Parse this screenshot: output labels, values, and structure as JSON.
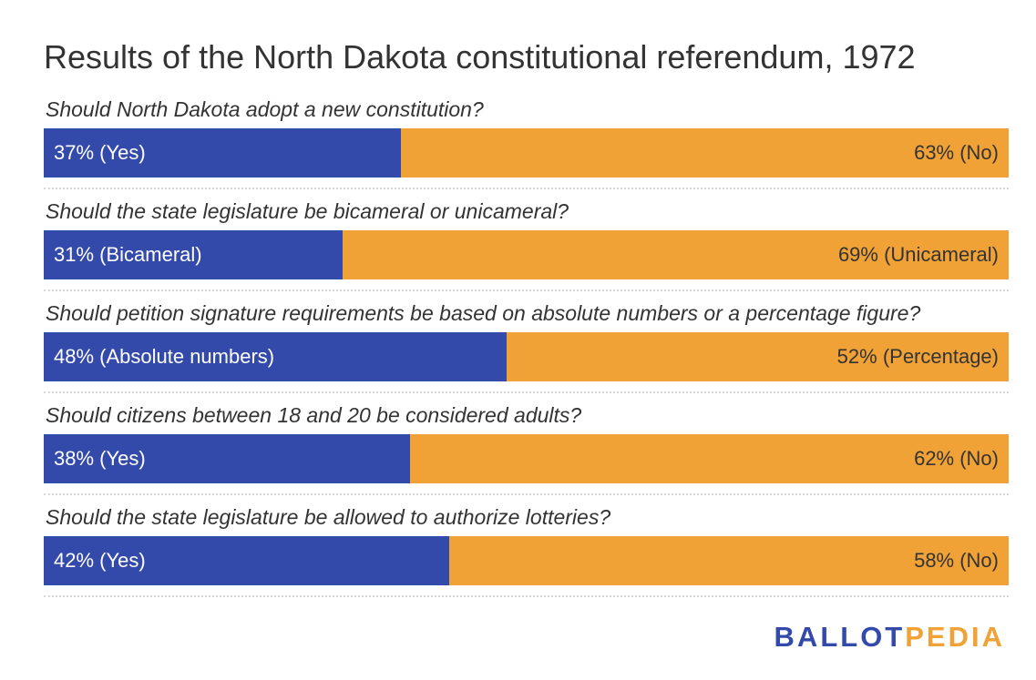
{
  "colors": {
    "option_a": "#334aab",
    "option_b": "#f0a236"
  },
  "brand": {
    "part1": "BALLOT",
    "part2": "PEDIA"
  },
  "chart_data": {
    "type": "bar",
    "orientation": "horizontal-stacked-100",
    "title": "Results of the North Dakota constitutional referendum, 1972",
    "rows": [
      {
        "question": "Should North Dakota adopt a new constitution?",
        "a": {
          "value": 37,
          "text": "37% (Yes)"
        },
        "b": {
          "value": 63,
          "text": "63% (No)"
        }
      },
      {
        "question": "Should the state legislature be bicameral or unicameral?",
        "a": {
          "value": 31,
          "text": "31% (Bicameral)"
        },
        "b": {
          "value": 69,
          "text": "69% (Unicameral)"
        }
      },
      {
        "question": "Should petition signature requirements be based on absolute numbers or a percentage figure?",
        "a": {
          "value": 48,
          "text": "48% (Absolute numbers)"
        },
        "b": {
          "value": 52,
          "text": "52% (Percentage)"
        }
      },
      {
        "question": "Should citizens between 18 and 20 be considered adults?",
        "a": {
          "value": 38,
          "text": "38% (Yes)"
        },
        "b": {
          "value": 62,
          "text": "62% (No)"
        }
      },
      {
        "question": "Should the state legislature be allowed to authorize lotteries?",
        "a": {
          "value": 42,
          "text": "42% (Yes)"
        },
        "b": {
          "value": 58,
          "text": "58% (No)"
        }
      }
    ]
  }
}
